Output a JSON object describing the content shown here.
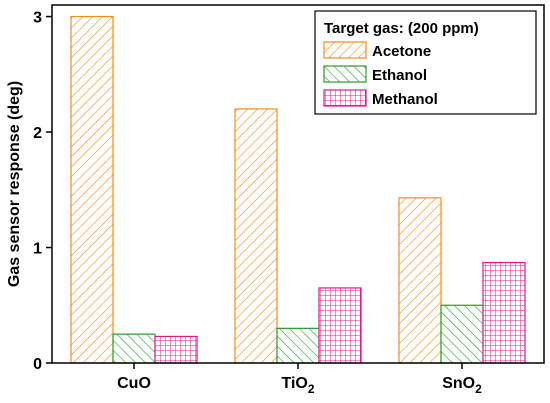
{
  "chart_data": {
    "type": "bar",
    "categories": [
      {
        "base": "CuO",
        "sub": ""
      },
      {
        "base": "TiO",
        "sub": "2"
      },
      {
        "base": "SnO",
        "sub": "2"
      }
    ],
    "series": [
      {
        "name": "Acetone",
        "values": [
          3.0,
          2.2,
          1.43
        ],
        "color": "#f28c1b",
        "pattern": "diagonal-left"
      },
      {
        "name": "Ethanol",
        "values": [
          0.25,
          0.3,
          0.5
        ],
        "color": "#2e9a2e",
        "pattern": "diagonal-right"
      },
      {
        "name": "Methanol",
        "values": [
          0.23,
          0.65,
          0.87
        ],
        "color": "#e0188c",
        "pattern": "crosshatch"
      }
    ],
    "title": "",
    "xlabel": "",
    "ylabel": "Gas sensor response (deg)",
    "ylim": [
      0,
      3.1
    ],
    "yticks": [
      0,
      1,
      2,
      3
    ],
    "legend": {
      "title": "Target gas: (200 ppm)",
      "position": "top-right"
    },
    "grid": false
  }
}
